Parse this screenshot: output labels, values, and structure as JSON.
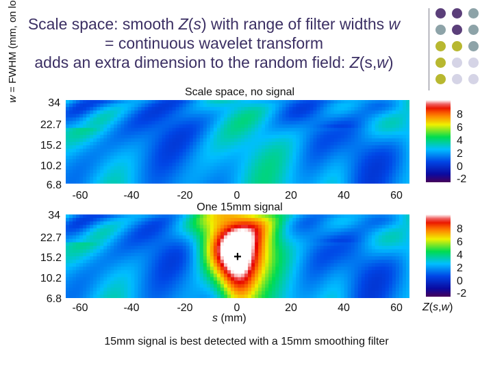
{
  "title": {
    "line1": "Scale space: smooth Z(s) with range of filter widths w",
    "line2": "= continuous wavelet transform",
    "line3": "adds an extra dimension to the random field: Z(s,w)"
  },
  "colors": {
    "title": "#3b2f63",
    "dots": [
      "#5b3f7a",
      "#5b3f7a",
      "#8da3a8",
      "#8da3a8",
      "#5b3f7a",
      "#8da3a8",
      "#b8b830",
      "#b8b830",
      "#8da3a8",
      "#b8b830",
      "#d5d4e6",
      "#d5d4e6",
      "#b8b830",
      "#d5d4e6",
      "#d5d4e6"
    ]
  },
  "y_axis_label": "w = FWHM (mm, on log scale)",
  "colorbar": {
    "labels": [
      "8",
      "6",
      "4",
      "2",
      "0",
      "-2"
    ],
    "label_text": "Z(s,w)"
  },
  "caption": "15mm signal is best detected with a 15mm smoothing filter",
  "chart_data": [
    {
      "type": "heatmap",
      "title": "Scale space, no signal",
      "xlabel": "",
      "ylabel": "w = FWHM (mm, on log scale)",
      "x_ticks": [
        "-60",
        "-40",
        "-20",
        "0",
        "20",
        "40",
        "60"
      ],
      "y_ticks": [
        "34",
        "22.7",
        "15.2",
        "10.2",
        "6.8"
      ],
      "xlim": [
        -70,
        70
      ],
      "ylim": [
        6.8,
        34
      ],
      "y_scale": "log",
      "colorbar_range": [
        -3,
        9
      ],
      "signal": null
    },
    {
      "type": "heatmap",
      "title": "One 15mm signal",
      "xlabel": "s (mm)",
      "ylabel": "w = FWHM (mm, on log scale)",
      "x_ticks": [
        "-60",
        "-40",
        "-20",
        "0",
        "20",
        "40",
        "60"
      ],
      "y_ticks": [
        "34",
        "22.7",
        "15.2",
        "10.2",
        "6.8"
      ],
      "xlim": [
        -70,
        70
      ],
      "ylim": [
        6.8,
        34
      ],
      "y_scale": "log",
      "colorbar_range": [
        -3,
        9
      ],
      "signal": {
        "s": 0,
        "w": 15,
        "marker": "+"
      }
    }
  ]
}
